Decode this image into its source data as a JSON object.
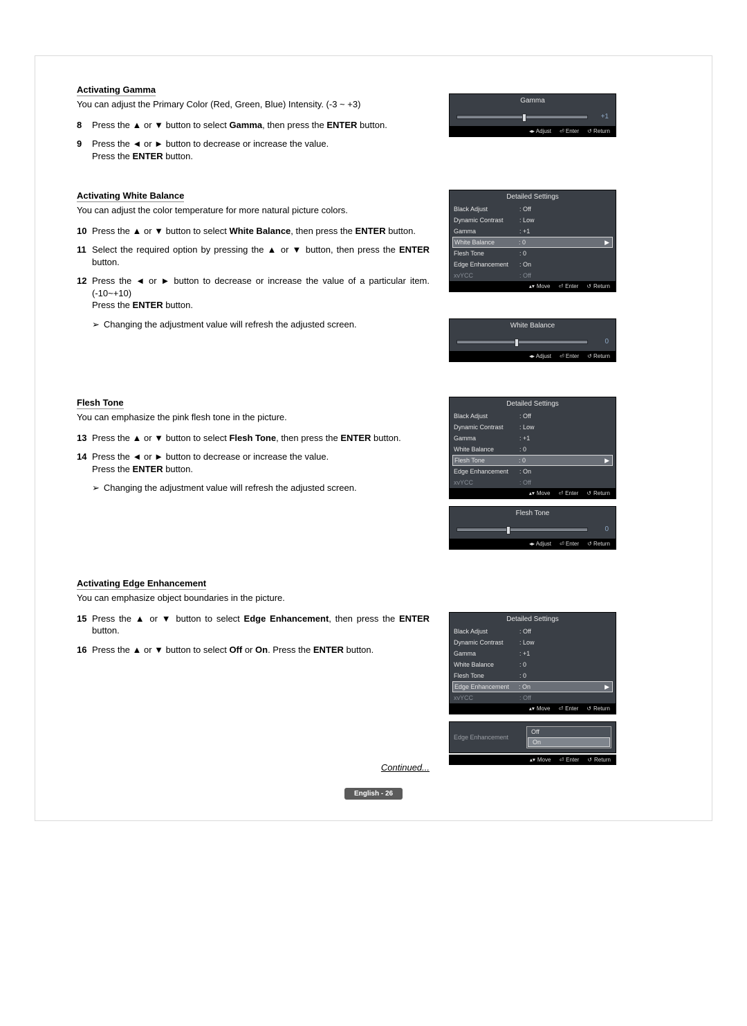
{
  "sections": {
    "gamma": {
      "title": "Activating Gamma",
      "desc": "You can adjust the Primary Color (Red, Green, Blue) Intensity. (-3 ~ +3)",
      "steps": [
        {
          "n": "8",
          "t": "Press the ▲ or ▼ button to select <b>Gamma</b>, then press the <b>ENTER</b> button."
        },
        {
          "n": "9",
          "t": "Press the ◄ or ► button to decrease or increase the value.<br>Press the <b>ENTER</b> button."
        }
      ],
      "slider": {
        "title": "Gamma",
        "value": "+1",
        "thumb_pct": 50
      }
    },
    "whitebalance": {
      "title": "Activating White Balance",
      "desc": "You can adjust the color temperature for more natural picture colors.",
      "steps": [
        {
          "n": "10",
          "t": "Press the ▲ or ▼ button to select <b>White Balance</b>, then press the <b>ENTER</b> button."
        },
        {
          "n": "11",
          "t": "Select the required option by pressing the ▲ or ▼ button, then press the <b>ENTER</b> button."
        },
        {
          "n": "12",
          "t": "Press the ◄ or ► button to decrease or increase the value of a particular item. (-10~+10)<br>Press the <b>ENTER</b> button."
        }
      ],
      "note": "Changing the adjustment value will refresh the adjusted screen.",
      "menu": {
        "title": "Detailed Settings",
        "rows": [
          {
            "l": "Black Adjust",
            "v": ": Off"
          },
          {
            "l": "Dynamic Contrast",
            "v": ": Low"
          },
          {
            "l": "Gamma",
            "v": ": +1"
          },
          {
            "l": "White Balance",
            "v": ": 0",
            "hl": true
          },
          {
            "l": "Flesh Tone",
            "v": ": 0"
          },
          {
            "l": "Edge Enhancement",
            "v": ": On"
          },
          {
            "l": "xvYCC",
            "v": ": Off",
            "dim": true
          }
        ]
      },
      "slider": {
        "title": "White Balance",
        "value": "0",
        "thumb_pct": 44
      }
    },
    "fleshtone": {
      "title": "Flesh Tone",
      "desc": "You can emphasize the pink flesh tone in the picture.",
      "steps": [
        {
          "n": "13",
          "t": "Press the ▲ or ▼ button to select <b>Flesh Tone</b>, then press the <b>ENTER</b> button."
        },
        {
          "n": "14",
          "t": "Press the ◄ or ► button to decrease or increase the value.<br>Press the <b>ENTER</b> button."
        }
      ],
      "note": "Changing the adjustment value will refresh the adjusted screen.",
      "menu": {
        "title": "Detailed Settings",
        "rows": [
          {
            "l": "Black Adjust",
            "v": ": Off"
          },
          {
            "l": "Dynamic Contrast",
            "v": ": Low"
          },
          {
            "l": "Gamma",
            "v": ": +1"
          },
          {
            "l": "White Balance",
            "v": ": 0"
          },
          {
            "l": "Flesh Tone",
            "v": ": 0",
            "hl": true
          },
          {
            "l": "Edge Enhancement",
            "v": ": On"
          },
          {
            "l": "xvYCC",
            "v": ": Off",
            "dim": true
          }
        ]
      },
      "slider": {
        "title": "Flesh Tone",
        "value": "0",
        "thumb_pct": 38
      }
    },
    "edge": {
      "title": "Activating Edge Enhancement",
      "desc": "You can emphasize object boundaries in the picture.",
      "steps": [
        {
          "n": "15",
          "t": "Press the ▲ or ▼ button to select <b>Edge Enhancement</b>, then press the <b>ENTER</b> button."
        },
        {
          "n": "16",
          "t": "Press the ▲ or ▼ button to select <b>Off</b> or <b>On</b>. Press the <b>ENTER</b> button."
        }
      ],
      "menu": {
        "title": "Detailed Settings",
        "rows": [
          {
            "l": "Black Adjust",
            "v": ": Off"
          },
          {
            "l": "Dynamic Contrast",
            "v": ": Low"
          },
          {
            "l": "Gamma",
            "v": ": +1"
          },
          {
            "l": "White Balance",
            "v": ": 0"
          },
          {
            "l": "Flesh Tone",
            "v": ": 0"
          },
          {
            "l": "Edge Enhancement",
            "v": ": On",
            "hl": true
          },
          {
            "l": "xvYCC",
            "v": ": Off",
            "dim": true
          }
        ]
      },
      "submenu": {
        "label": "Edge Enhancement",
        "opts": [
          "Off",
          "On"
        ],
        "sel": 1
      }
    }
  },
  "osd_footer_move": {
    "move": "Move",
    "enter": "Enter",
    "ret": "Return"
  },
  "osd_footer_adjust": {
    "adj": "Adjust",
    "enter": "Enter",
    "ret": "Return"
  },
  "continued": "Continued...",
  "footer": "English - 26"
}
